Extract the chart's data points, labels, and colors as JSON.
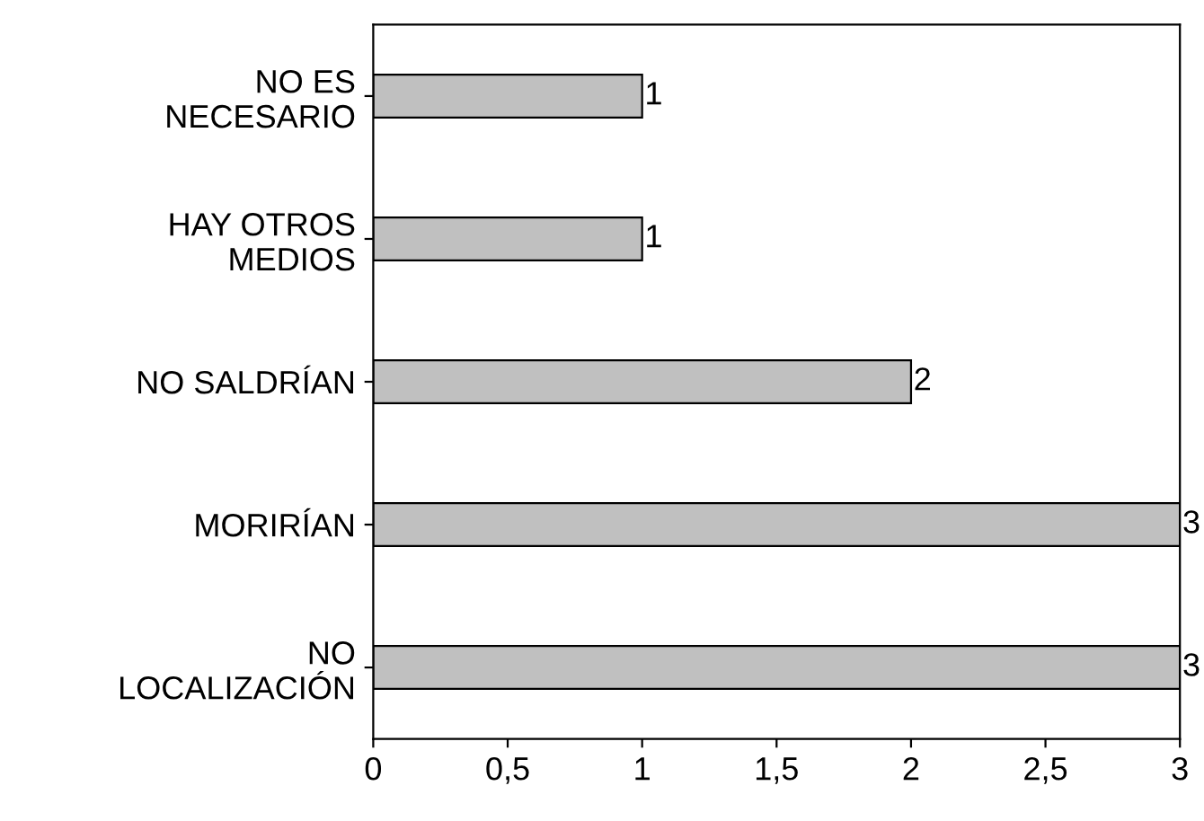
{
  "chart_data": {
    "type": "bar",
    "orientation": "horizontal",
    "categories": [
      "NO ES\nNECESARIO",
      "HAY OTROS\nMEDIOS",
      "NO SALDRÍAN",
      "MORIRÍAN",
      "NO\nLOCALIZACIÓN"
    ],
    "values": [
      1,
      1,
      2,
      3,
      3
    ],
    "color": "#c0c0c0",
    "xlim": [
      0,
      3
    ],
    "xticks": [
      0,
      {
        "value": 0.5,
        "label": "0,5"
      },
      1,
      {
        "value": 1.5,
        "label": "1,5"
      },
      2,
      {
        "value": 2.5,
        "label": "2,5"
      },
      3
    ],
    "data_labels": true,
    "grid": false
  }
}
